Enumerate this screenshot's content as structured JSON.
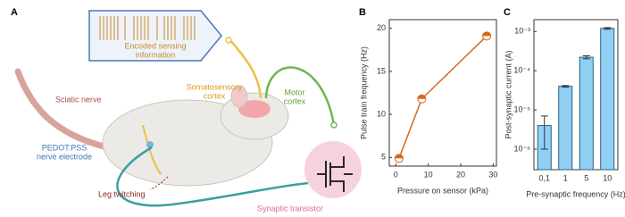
{
  "diagram": {
    "panel": "A",
    "labels": {
      "encoded": [
        "Encoded sensing",
        "information"
      ],
      "somatosensory": [
        "Somatosensory",
        "cortex"
      ],
      "motor": [
        "Motor",
        "cortex"
      ],
      "sciatic": [
        "Sciatic nerve"
      ],
      "electrode": [
        "PEDOT:PSS",
        "nerve electrode"
      ],
      "twitch": [
        "Leg twitching"
      ],
      "transistor": [
        "Synaptic transistor"
      ]
    }
  },
  "chart_data": [
    {
      "type": "line",
      "panel": "B",
      "x_label": "Pressure on sensor (kPa)",
      "y_label": "Pulse train frequency (Hz)",
      "x": [
        1,
        8,
        28
      ],
      "values": [
        4.9,
        11.8,
        19.1
      ],
      "color": "#d9661c",
      "xlim": [
        -2,
        31
      ],
      "xticks": [
        0,
        10,
        20,
        30
      ],
      "ylim": [
        4,
        21
      ],
      "yticks": [
        5,
        10,
        15,
        20
      ]
    },
    {
      "type": "bar",
      "panel": "C",
      "x_label": "Pre-synaptic frequency (Hz)",
      "y_label": "Post-synaptic current (A)",
      "categories": [
        "0,1",
        "1",
        "5",
        "10"
      ],
      "values": [
        4e-06,
        4e-05,
        0.00022,
        0.0012
      ],
      "errors": [
        3e-06,
        2e-06,
        2e-05,
        6e-05
      ],
      "color": "#8fd0f3",
      "log_y": true,
      "ylim": [
        3e-07,
        0.002
      ],
      "yticks": [
        {
          "value": 1e-06,
          "label": "10⁻⁶"
        },
        {
          "value": 1e-05,
          "label": "10⁻⁵"
        },
        {
          "value": 0.0001,
          "label": "10⁻⁴"
        },
        {
          "value": 0.001,
          "label": "10⁻³"
        }
      ]
    }
  ]
}
